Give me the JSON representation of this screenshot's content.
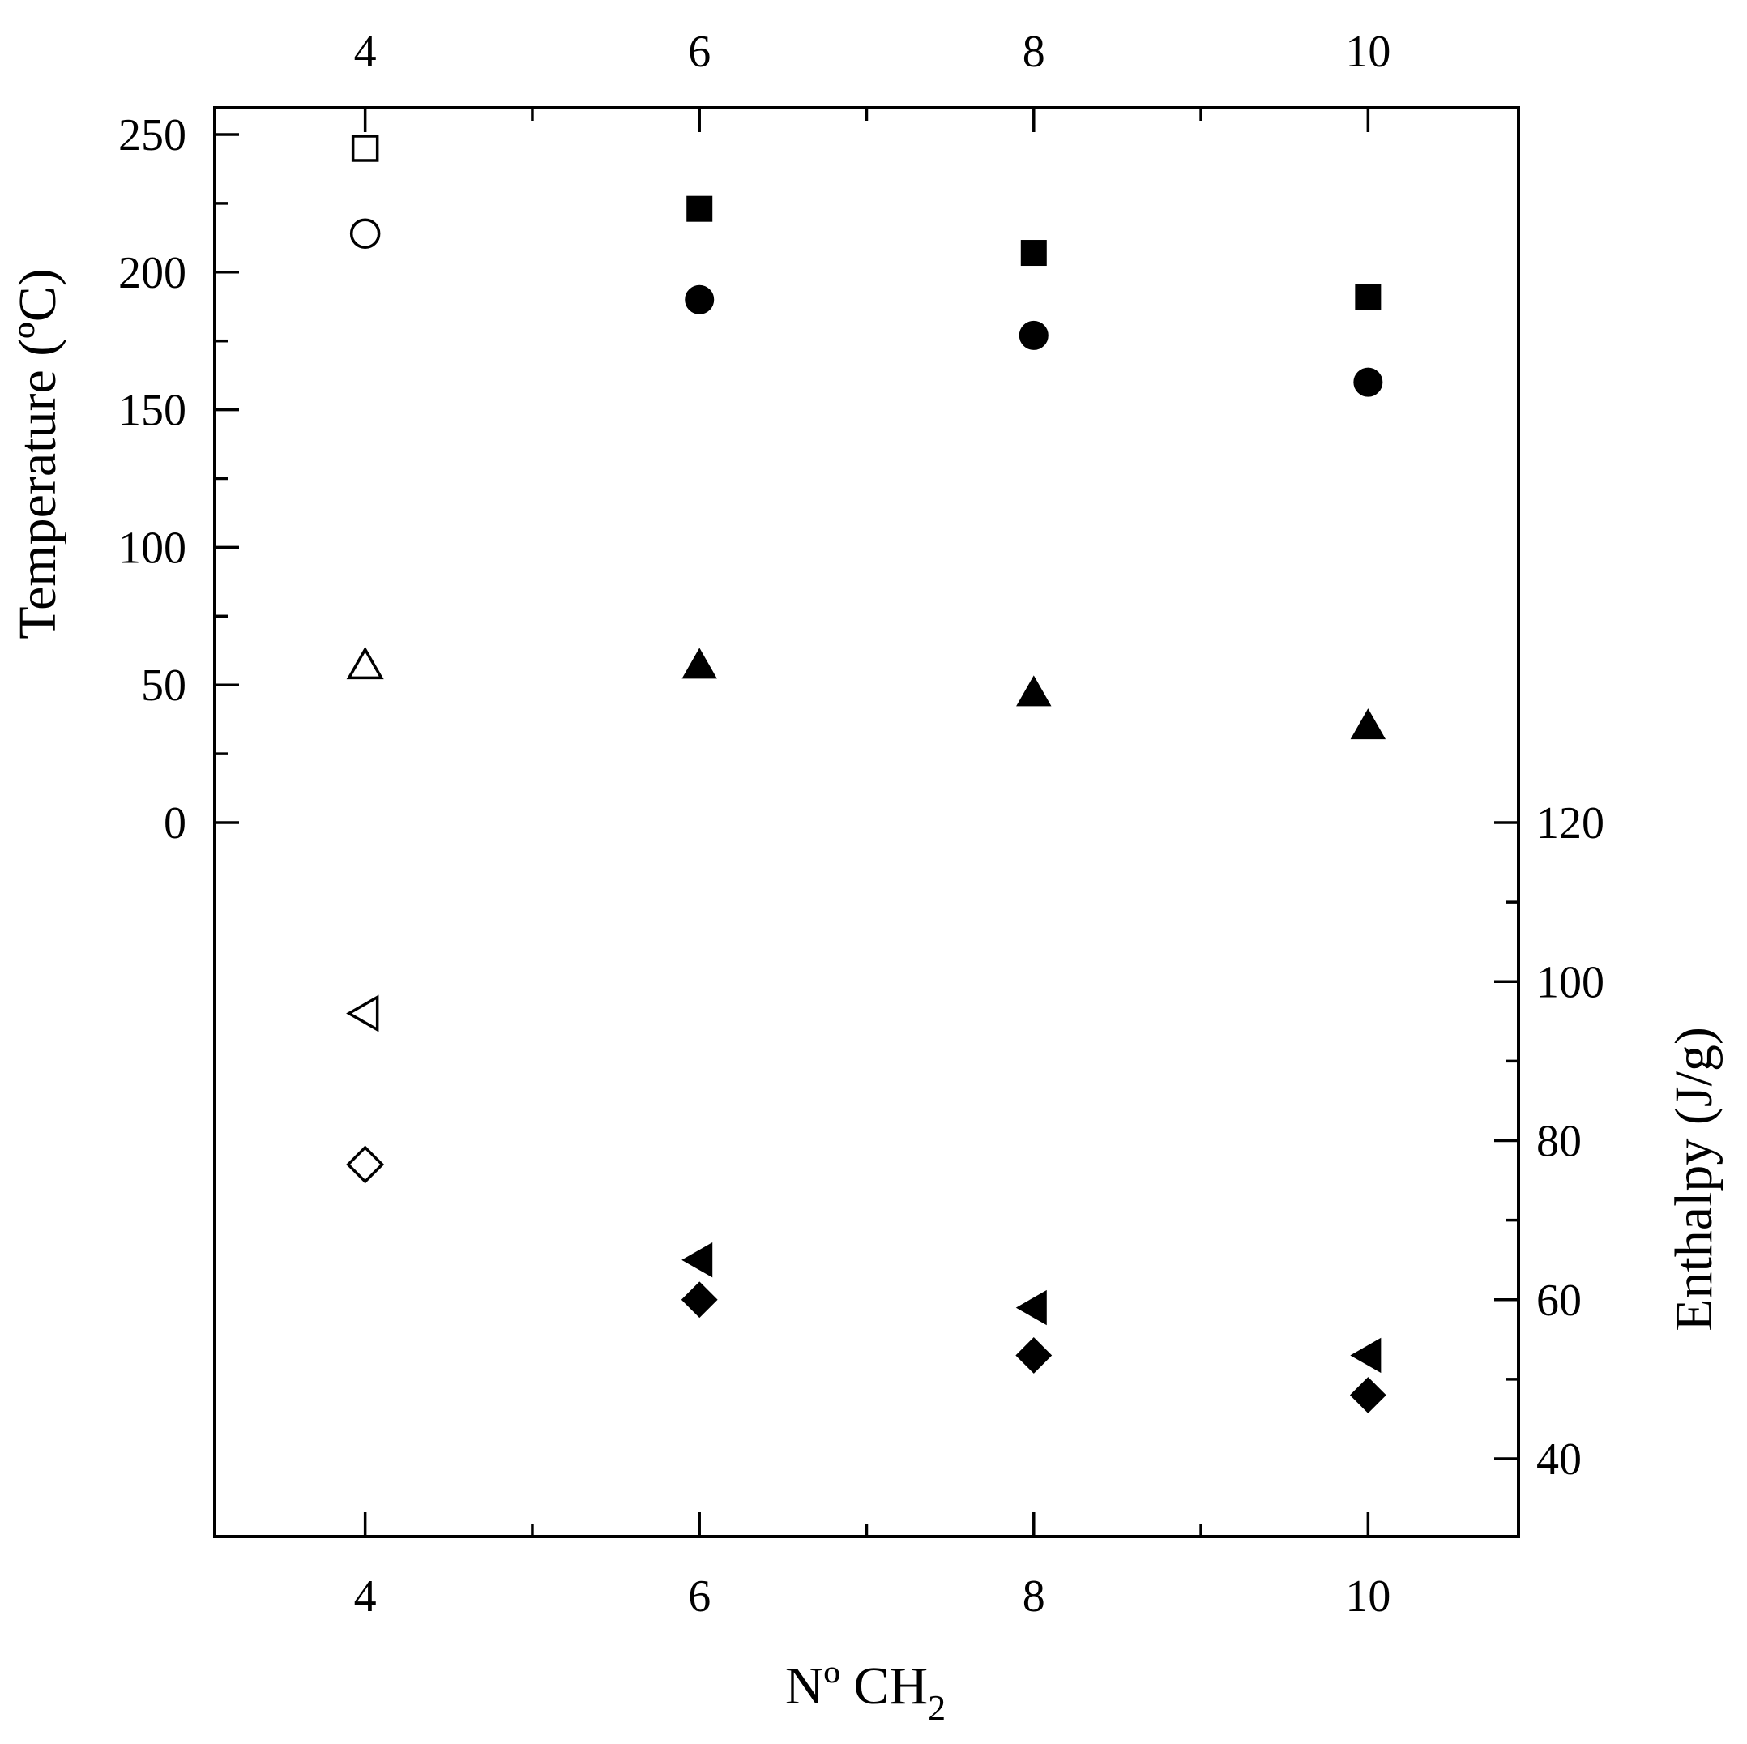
{
  "chart_data": {
    "type": "scatter",
    "title": "",
    "xlabel": "Nº CH",
    "xlabel_subscript": "2",
    "ylabel_left": "Temperature (ºC)",
    "ylabel_right": "Enthalpy (J/g)",
    "x_ticks": [
      "4",
      "6",
      "8",
      "10"
    ],
    "x_top_ticks": [
      "4",
      "6",
      "8",
      "10"
    ],
    "y_left_ticks": [
      "0",
      "50",
      "100",
      "150",
      "200",
      "250"
    ],
    "y_right_ticks": [
      "40",
      "60",
      "80",
      "100",
      "120"
    ],
    "xlim": [
      3.1,
      10.9
    ],
    "ylim_left": [
      0,
      260
    ],
    "ylim_right": [
      30,
      120
    ],
    "grid": false,
    "legend": "none",
    "series": [
      {
        "axis": "left",
        "marker": "square",
        "points": [
          {
            "x": 4,
            "y": 245,
            "filled": false
          },
          {
            "x": 6,
            "y": 223,
            "filled": true
          },
          {
            "x": 8,
            "y": 207,
            "filled": true
          },
          {
            "x": 10,
            "y": 191,
            "filled": true
          }
        ]
      },
      {
        "axis": "left",
        "marker": "circle",
        "points": [
          {
            "x": 4,
            "y": 214,
            "filled": false
          },
          {
            "x": 6,
            "y": 190,
            "filled": true
          },
          {
            "x": 8,
            "y": 177,
            "filled": true
          },
          {
            "x": 10,
            "y": 160,
            "filled": true
          }
        ]
      },
      {
        "axis": "left",
        "marker": "triangle-up",
        "points": [
          {
            "x": 4,
            "y": 57,
            "filled": false
          },
          {
            "x": 6,
            "y": 57,
            "filled": true
          },
          {
            "x": 8,
            "y": 47,
            "filled": true
          },
          {
            "x": 10,
            "y": 35,
            "filled": true
          }
        ]
      },
      {
        "axis": "right",
        "marker": "triangle-left",
        "points": [
          {
            "x": 4,
            "y": 96,
            "filled": false
          },
          {
            "x": 6,
            "y": 65,
            "filled": true
          },
          {
            "x": 8,
            "y": 59,
            "filled": true
          },
          {
            "x": 10,
            "y": 53,
            "filled": true
          }
        ]
      },
      {
        "axis": "right",
        "marker": "diamond",
        "points": [
          {
            "x": 4,
            "y": 77,
            "filled": false
          },
          {
            "x": 6,
            "y": 60,
            "filled": true
          },
          {
            "x": 8,
            "y": 53,
            "filled": true
          },
          {
            "x": 10,
            "y": 48,
            "filled": true
          }
        ]
      }
    ]
  }
}
